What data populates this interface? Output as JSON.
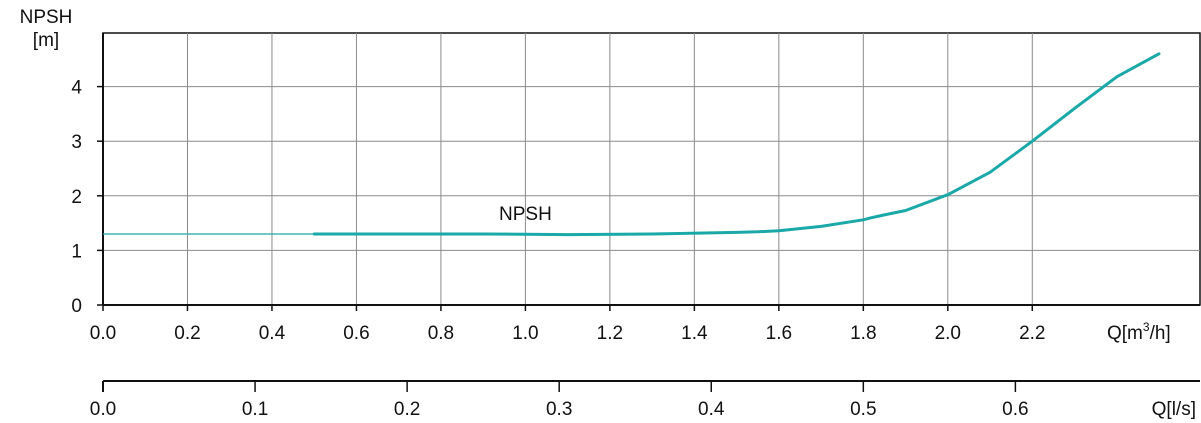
{
  "chart_data": {
    "type": "line",
    "y_label_line1": "NPSH",
    "y_label_line2": "[m]",
    "y_ticks": [
      0,
      1,
      2,
      3,
      4
    ],
    "ylim": [
      0,
      5
    ],
    "x_primary": {
      "unit_prefix": "Q[m",
      "unit_sup": "3",
      "unit_suffix": "/h]",
      "ticks": [
        "0.0",
        "0.2",
        "0.4",
        "0.6",
        "0.8",
        "1.0",
        "1.2",
        "1.4",
        "1.6",
        "1.8",
        "2.0",
        "2.2"
      ],
      "xlim": [
        0,
        2.5
      ]
    },
    "x_secondary": {
      "label": "Q[l/s]",
      "ticks": [
        "0.0",
        "0.1",
        "0.2",
        "0.3",
        "0.4",
        "0.5",
        "0.6"
      ]
    },
    "grid": true,
    "series": [
      {
        "name": "NPSH",
        "color": "#1aa8a8",
        "x": [
          0.5,
          0.7,
          0.9,
          1.1,
          1.3,
          1.5,
          1.55,
          1.6,
          1.7,
          1.8,
          1.82,
          1.85,
          1.9,
          2.0,
          2.1,
          2.2,
          2.3,
          2.4,
          2.5
        ],
        "y": [
          1.3,
          1.3,
          1.3,
          1.29,
          1.3,
          1.33,
          1.34,
          1.36,
          1.44,
          1.56,
          1.6,
          1.65,
          1.73,
          2.02,
          2.43,
          3.0,
          3.6,
          4.18,
          4.6
        ]
      }
    ],
    "extension": {
      "color": "#1aa8a8",
      "x": [
        0.0,
        0.5
      ],
      "y": [
        1.3,
        1.3
      ]
    }
  }
}
